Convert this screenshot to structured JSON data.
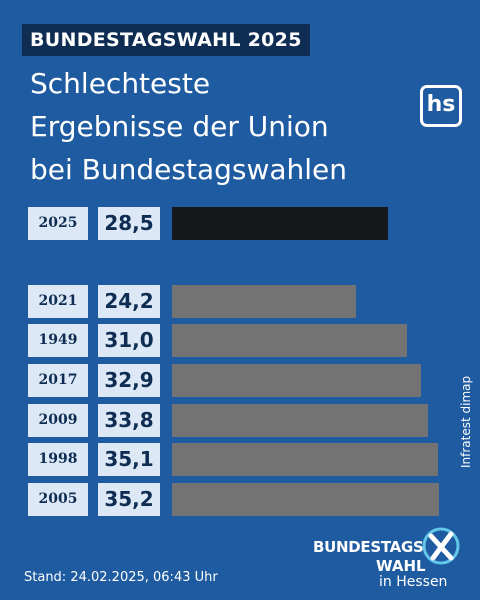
{
  "kicker": "BUNDESTAGSWAHL 2025",
  "title": [
    "Schlechteste",
    "Ergebnisse der Union",
    "bei Bundestagswahlen"
  ],
  "logo": "hs",
  "source": "Infratest dimap",
  "badge": {
    "line1": "BUNDESTAGS",
    "line2": "WAHL",
    "line3": "in Hessen",
    "icon": "checkmark-x-icon"
  },
  "footer": "Stand: 24.02.2025, 06:43 Uhr",
  "colors": {
    "background": "#1f5ba0",
    "highlight_bar": "#17181b",
    "bar": "#737373",
    "label_box": "#dce8f5",
    "text_dark": "#0f2d52",
    "accent": "#62c7e8"
  },
  "chart_data": {
    "type": "bar",
    "orientation": "horizontal",
    "categories": [
      "2025",
      "2021",
      "1949",
      "2017",
      "2009",
      "1998",
      "2005"
    ],
    "values": [
      "28,5",
      "24,2",
      "31,0",
      "32,9",
      "33,8",
      "35,1",
      "35,2"
    ],
    "highlight": "2025",
    "xlim": [
      0,
      36
    ]
  }
}
